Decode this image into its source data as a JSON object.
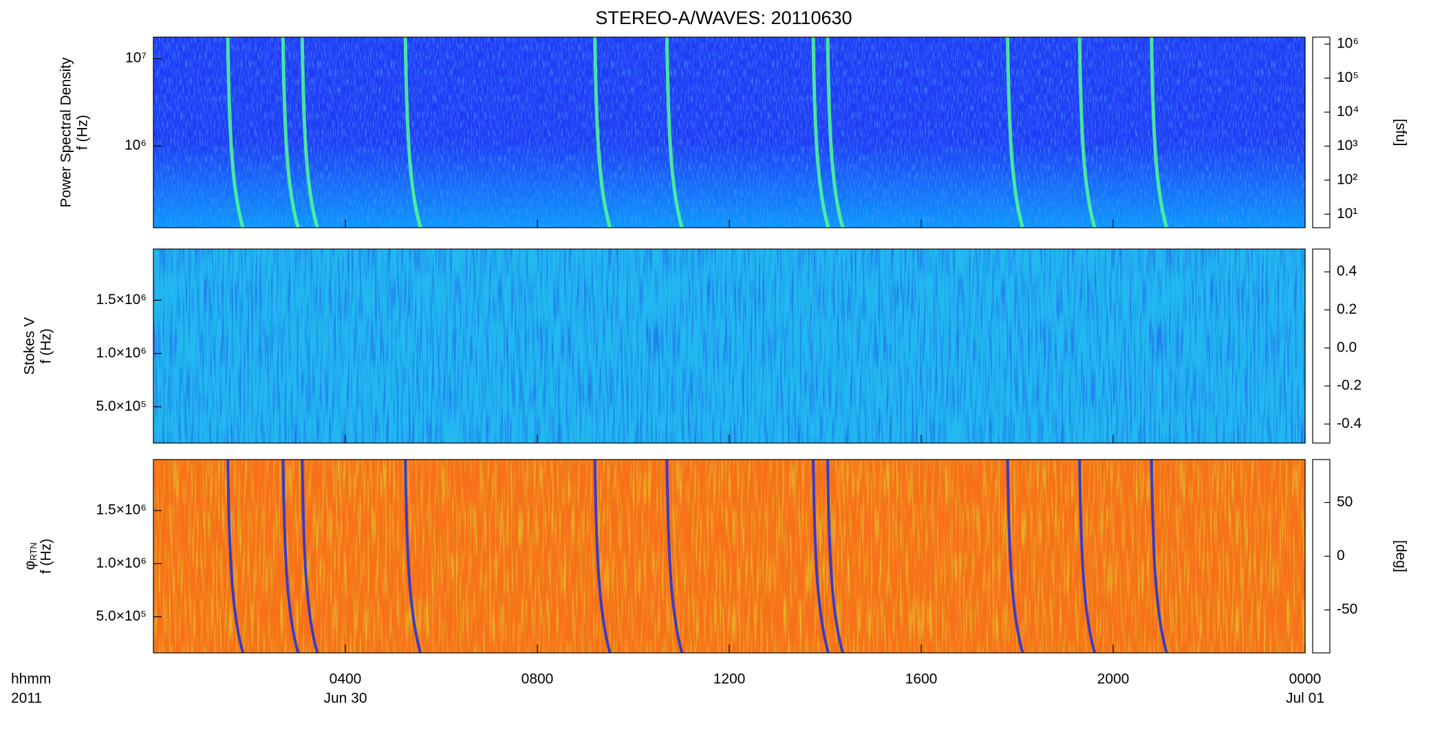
{
  "title": "STEREO-A/WAVES: 20110630",
  "colormap": [
    "#000000",
    "#6a00a8",
    "#0000ff",
    "#00c8ff",
    "#00ff80",
    "#c8ff00",
    "#ffc800",
    "#ff0000"
  ],
  "xaxis": {
    "label_lines": [
      "hhmm",
      "2011"
    ],
    "xlim": [
      0,
      24
    ],
    "xticks": [
      {
        "value": 4,
        "label": "0400"
      },
      {
        "value": 8,
        "label": "0800"
      },
      {
        "value": 12,
        "label": "1200"
      },
      {
        "value": 16,
        "label": "1600"
      },
      {
        "value": 20,
        "label": "2000"
      },
      {
        "value": 24,
        "label": "0000"
      }
    ],
    "date_labels": [
      {
        "value": 4,
        "label": "Jun 30"
      },
      {
        "value": 24,
        "label": "Jul 01"
      }
    ]
  },
  "chart_data": [
    {
      "type": "heatmap",
      "ylabel": [
        "Power Spectral Density",
        "f (Hz)"
      ],
      "log_y": true,
      "ylim": [
        116000,
        17600000
      ],
      "yticks": [
        {
          "value": 1000000,
          "label": "10⁶"
        },
        {
          "value": 10000000,
          "label": "10⁷"
        }
      ],
      "color": "#1f3cf5",
      "noise_color": "#4fa0ff",
      "burst_times": [
        1.55,
        2.7,
        3.1,
        5.25,
        9.2,
        10.7,
        13.75,
        14.05,
        17.8,
        19.3,
        20.8
      ],
      "colorbar": {
        "log": true,
        "clim": [
          4,
          1600000
        ],
        "label": "[sfu]",
        "ticks": [
          {
            "value": 10,
            "label": "10¹"
          },
          {
            "value": 100,
            "label": "10²"
          },
          {
            "value": 1000,
            "label": "10³"
          },
          {
            "value": 10000,
            "label": "10⁴"
          },
          {
            "value": 100000,
            "label": "10⁵"
          },
          {
            "value": 1000000,
            "label": "10⁶"
          }
        ]
      }
    },
    {
      "type": "heatmap",
      "ylabel": [
        "Stokes V",
        "f (Hz)"
      ],
      "log_y": false,
      "ylim": [
        160000,
        1980000
      ],
      "yticks": [
        {
          "value": 500000,
          "label": "5.0×10⁵"
        },
        {
          "value": 1000000,
          "label": "1.0×10⁶"
        },
        {
          "value": 1500000,
          "label": "1.5×10⁶"
        }
      ],
      "color": "#22b8f0",
      "noise_color": "#2050e8",
      "colorbar": {
        "log": false,
        "clim": [
          -0.5,
          0.52
        ],
        "ticks": [
          -0.4,
          -0.2,
          {
            "value": 0,
            "label": "0.0"
          },
          0.2,
          0.4
        ]
      }
    },
    {
      "type": "heatmap",
      "ylabel_symbol": "φ",
      "ylabel_subscript": "RTN",
      "ylabel_second": "f (Hz)",
      "log_y": false,
      "ylim": [
        160000,
        1980000
      ],
      "yticks": [
        {
          "value": 500000,
          "label": "5.0×10⁵"
        },
        {
          "value": 1000000,
          "label": "1.0×10⁶"
        },
        {
          "value": 1500000,
          "label": "1.5×10⁶"
        }
      ],
      "color": "#f8701a",
      "noise_color": "#d8e030",
      "colorbar": {
        "log": false,
        "clim": [
          -90,
          90
        ],
        "label": "[deg]",
        "ticks": [
          -50,
          0,
          50
        ]
      }
    }
  ]
}
